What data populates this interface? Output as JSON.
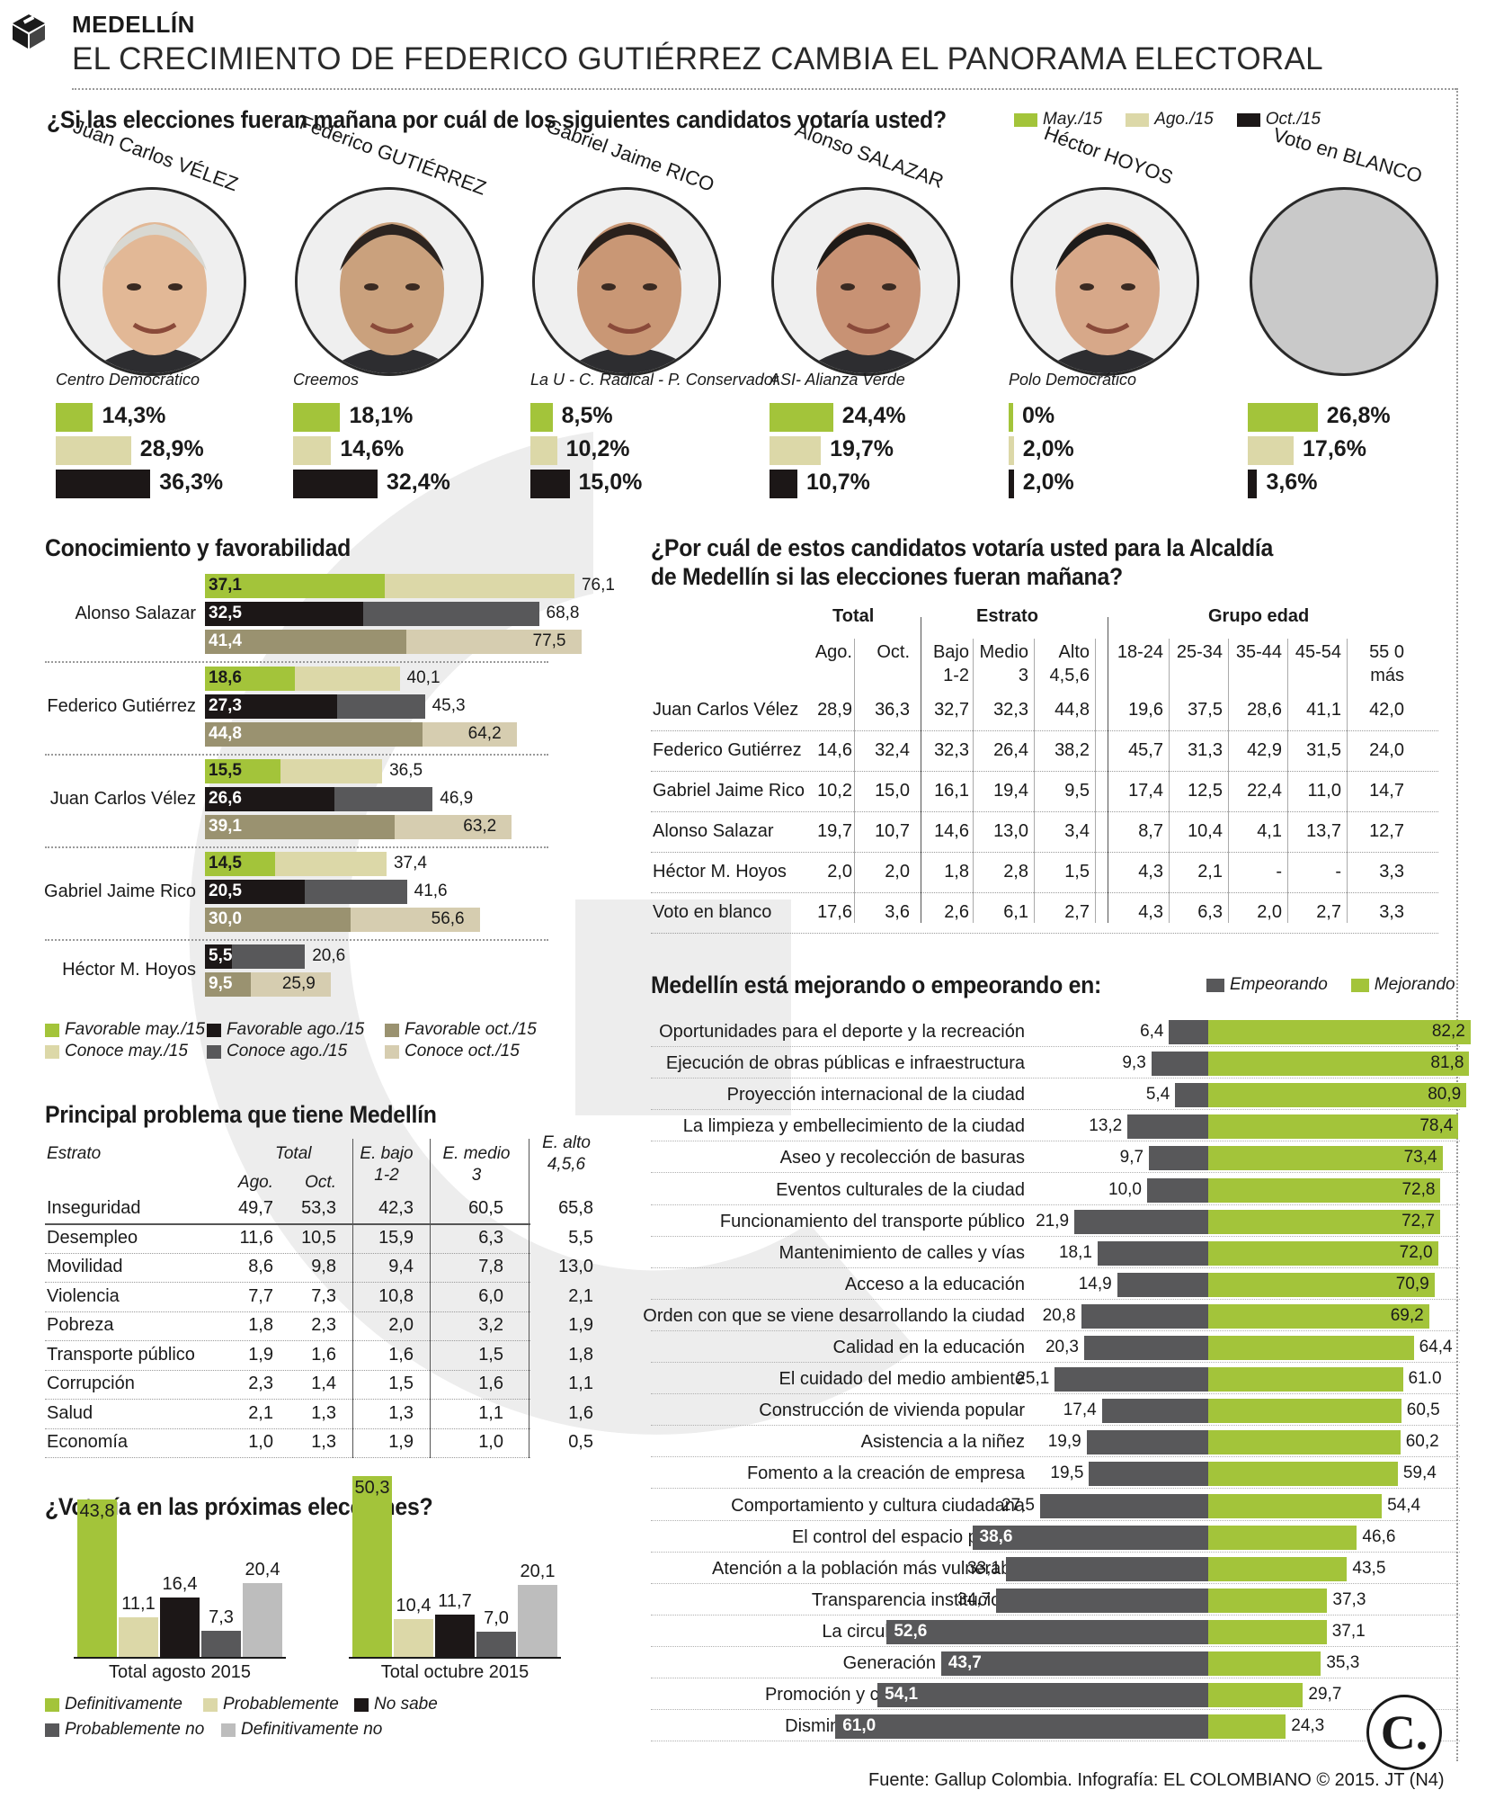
{
  "header": {
    "section": "MEDELLÍN",
    "title": "EL CRECIMIENTO DE FEDERICO GUTIÉRREZ CAMBIA EL PANORAMA ELECTORAL",
    "icon": "ballot-box-icon"
  },
  "colors": {
    "may": "#a3c43a",
    "ago": "#dcd8a8",
    "oct": "#1c1717",
    "dark_gray": "#58585a",
    "gray": "#808080",
    "olive": "#9a9270",
    "light_tan": "#d6cdb0",
    "light_gray": "#bdbdbd",
    "watermark": "#ebebeb"
  },
  "voting_intention": {
    "question": "¿Si las elecciones fueran mañana por cuál de los siguientes candidatos votaría usted?",
    "legend": [
      "May./15",
      "Ago./15",
      "Oct./15"
    ],
    "candidates": [
      {
        "first": "Juan Carlos",
        "last": "VÉLEZ",
        "party": "Centro Democrático",
        "values": [
          "14,3%",
          "28,9%",
          "36,3%"
        ]
      },
      {
        "first": "Federico",
        "last": "GUTIÉRREZ",
        "party": "Creemos",
        "values": [
          "18,1%",
          "14,6%",
          "32,4%"
        ]
      },
      {
        "first": "Gabriel Jaime",
        "last": "RICO",
        "party": "La U - C. Radical - P. Conservador",
        "values": [
          "8,5%",
          "10,2%",
          "15,0%"
        ]
      },
      {
        "first": "Alonso",
        "last": "SALAZAR",
        "party": "ASI- Alianza Verde",
        "values": [
          "24,4%",
          "19,7%",
          "10,7%"
        ]
      },
      {
        "first": "Héctor",
        "last": "HOYOS",
        "party": "Polo Democrático",
        "values": [
          "0%",
          "2,0%",
          "2,0%"
        ]
      },
      {
        "first": "Voto en",
        "last": "BLANCO",
        "party": "",
        "values": [
          "26,8%",
          "17,6%",
          "3,6%"
        ]
      }
    ]
  },
  "favorability": {
    "title": "Conocimiento y favorabilidad",
    "legend": [
      "Favorable may./15",
      "Favorable ago./15",
      "Favorable oct./15",
      "Conoce may./15",
      "Conoce ago./15",
      "Conoce oct./15"
    ],
    "rows": [
      {
        "name": "Alonso Salazar",
        "bars": [
          [
            "37,1",
            "76,1"
          ],
          [
            "32,5",
            "68,8"
          ],
          [
            "41,4",
            "77,5"
          ]
        ]
      },
      {
        "name": "Federico Gutiérrez",
        "bars": [
          [
            "18,6",
            "40,1"
          ],
          [
            "27,3",
            "45,3"
          ],
          [
            "44,8",
            "64,2"
          ]
        ]
      },
      {
        "name": "Juan Carlos Vélez",
        "bars": [
          [
            "15,5",
            "36,5"
          ],
          [
            "26,6",
            "46,9"
          ],
          [
            "39,1",
            "63,2"
          ]
        ]
      },
      {
        "name": "Gabriel Jaime Rico",
        "bars": [
          [
            "14,5",
            "37,4"
          ],
          [
            "20,5",
            "41,6"
          ],
          [
            "30,0",
            "56,6"
          ]
        ]
      },
      {
        "name": "Héctor M. Hoyos",
        "bars": [
          [
            "5,5",
            "20,6"
          ],
          [
            "9,5",
            "25,9"
          ]
        ]
      }
    ]
  },
  "mayor_table": {
    "title_line1": "¿Por cuál de estos candidatos votaría usted para la Alcaldía",
    "title_line2": "de Medellín si las elecciones fueran mañana?",
    "group_headers": [
      "Total",
      "Estrato",
      "Grupo edad"
    ],
    "col_headers": [
      [
        "Ago.",
        ""
      ],
      [
        "Oct.",
        ""
      ],
      [
        "Bajo",
        "1-2"
      ],
      [
        "Medio",
        "3"
      ],
      [
        "Alto",
        "4,5,6"
      ],
      [
        "18-24",
        ""
      ],
      [
        "25-34",
        ""
      ],
      [
        "35-44",
        ""
      ],
      [
        "45-54",
        ""
      ],
      [
        "55 0",
        "más"
      ]
    ],
    "rows": [
      {
        "name": "Juan Carlos Vélez",
        "values": [
          "28,9",
          "36,3",
          "32,7",
          "32,3",
          "44,8",
          "19,6",
          "37,5",
          "28,6",
          "41,1",
          "42,0"
        ]
      },
      {
        "name": "Federico Gutiérrez",
        "values": [
          "14,6",
          "32,4",
          "32,3",
          "26,4",
          "38,2",
          "45,7",
          "31,3",
          "42,9",
          "31,5",
          "24,0"
        ]
      },
      {
        "name": "Gabriel Jaime Rico",
        "values": [
          "10,2",
          "15,0",
          "16,1",
          "19,4",
          "9,5",
          "17,4",
          "12,5",
          "22,4",
          "11,0",
          "14,7"
        ]
      },
      {
        "name": "Alonso Salazar",
        "values": [
          "19,7",
          "10,7",
          "14,6",
          "13,0",
          "3,4",
          "8,7",
          "10,4",
          "4,1",
          "13,7",
          "12,7"
        ]
      },
      {
        "name": "Héctor M. Hoyos",
        "values": [
          "2,0",
          "2,0",
          "1,8",
          "2,8",
          "1,5",
          "4,3",
          "2,1",
          "-",
          "-",
          "3,3"
        ]
      },
      {
        "name": "Voto en blanco",
        "values": [
          "17,6",
          "3,6",
          "2,6",
          "6,1",
          "2,7",
          "4,3",
          "6,3",
          "2,0",
          "2,7",
          "3,3"
        ]
      }
    ]
  },
  "problems": {
    "title": "Principal problema que tiene Medellín",
    "headers": {
      "estrato": "Estrato",
      "total": "Total",
      "ago": "Ago.",
      "oct": "Oct.",
      "bajo": [
        "E. bajo",
        "1-2"
      ],
      "medio": [
        "E. medio",
        "3"
      ],
      "alto": [
        "E. alto",
        "4,5,6"
      ]
    },
    "rows": [
      {
        "name": "Inseguridad",
        "values": [
          "49,7",
          "53,3",
          "42,3",
          "60,5",
          "65,8"
        ]
      },
      {
        "name": "Desempleo",
        "values": [
          "11,6",
          "10,5",
          "15,9",
          "6,3",
          "5,5"
        ]
      },
      {
        "name": "Movilidad",
        "values": [
          "8,6",
          "9,8",
          "9,4",
          "7,8",
          "13,0"
        ]
      },
      {
        "name": "Violencia",
        "values": [
          "7,7",
          "7,3",
          "10,8",
          "6,0",
          "2,1"
        ]
      },
      {
        "name": "Pobreza",
        "values": [
          "1,8",
          "2,3",
          "2,0",
          "3,2",
          "1,9"
        ]
      },
      {
        "name": "Transporte público",
        "values": [
          "1,9",
          "1,6",
          "1,6",
          "1,5",
          "1,8"
        ]
      },
      {
        "name": "Corrupción",
        "values": [
          "2,3",
          "1,4",
          "1,5",
          "1,6",
          "1,1"
        ]
      },
      {
        "name": "Salud",
        "values": [
          "2,1",
          "1,3",
          "1,3",
          "1,1",
          "1,6"
        ]
      },
      {
        "name": "Economía",
        "values": [
          "1,0",
          "1,3",
          "1,9",
          "1,0",
          "0,5"
        ]
      }
    ]
  },
  "chart_data": [
    {
      "type": "bar",
      "title": "¿Votaría en las próximas elecciones?",
      "categories": [
        "Total agosto 2015",
        "Total octubre 2015"
      ],
      "series": [
        {
          "name": "Definitivamente",
          "values": [
            43.8,
            50.3
          ],
          "labels": [
            "43,8",
            "50,3"
          ]
        },
        {
          "name": "Probablemente",
          "values": [
            11.1,
            10.4
          ],
          "labels": [
            "11,1",
            "10,4"
          ]
        },
        {
          "name": "No sabe",
          "values": [
            16.4,
            11.7
          ],
          "labels": [
            "16,4",
            "11,7"
          ]
        },
        {
          "name": "Probablemente no",
          "values": [
            7.3,
            7.0
          ],
          "labels": [
            "7,3",
            "7,0"
          ]
        },
        {
          "name": "Definitivamente no",
          "values": [
            20.4,
            20.1
          ],
          "labels": [
            "20,4",
            "20,1"
          ]
        }
      ]
    },
    {
      "type": "bar",
      "title": "Medellín está mejorando o empeorando en:",
      "legend": [
        "Empeorando",
        "Mejorando"
      ],
      "categories": [
        "Oportunidades para el deporte y la recreación",
        "Ejecución de obras públicas e infraestructura",
        "Proyección internacional de la ciudad",
        "La limpieza y embellecimiento de la ciudad",
        "Aseo y recolección de basuras",
        "Eventos culturales de la ciudad",
        "Funcionamiento del transporte público",
        "Mantenimiento de calles y vías",
        "Acceso a la educación",
        "Orden con que se viene desarrollando la ciudad",
        "Calidad en la educación",
        "El cuidado del medio ambiente",
        "Construcción de vivienda popular",
        "Asistencia a la niñez",
        "Fomento a la creación de empresa",
        "Comportamiento y cultura ciudadana",
        "El control del espacio público",
        "Atención a la población más vulnerable",
        "Transparencia institucional",
        "La circulación del tránsito",
        "Generación de empleo",
        "Promoción y cuidado de la salud",
        "Disminución de la inseguridad"
      ],
      "series": [
        {
          "name": "Empeorando",
          "values": [
            6.4,
            9.3,
            5.4,
            13.2,
            9.7,
            10.0,
            21.9,
            18.1,
            14.9,
            20.8,
            20.3,
            25.1,
            17.4,
            19.9,
            19.5,
            27.5,
            38.6,
            33.1,
            34.7,
            52.6,
            43.7,
            54.1,
            61.0
          ],
          "labels": [
            "6,4",
            "9,3",
            "5,4",
            "13,2",
            "9,7",
            "10,0",
            "21,9",
            "18,1",
            "14,9",
            "20,8",
            "20,3",
            "25,1",
            "17,4",
            "19,9",
            "19,5",
            "27,5",
            "38,6",
            "33,1",
            "34,7",
            "52,6",
            "43,7",
            "54,1",
            "61,0"
          ]
        },
        {
          "name": "Mejorando",
          "values": [
            82.2,
            81.8,
            80.9,
            78.4,
            73.4,
            72.8,
            72.7,
            72.0,
            70.9,
            69.2,
            64.4,
            61.0,
            60.5,
            60.2,
            59.4,
            54.4,
            46.6,
            43.5,
            37.3,
            37.1,
            35.3,
            29.7,
            24.3
          ],
          "labels": [
            "82,2",
            "81,8",
            "80,9",
            "78,4",
            "73,4",
            "72,8",
            "72,7",
            "72,0",
            "70,9",
            "69,2",
            "64,4",
            "61.0",
            "60,5",
            "60,2",
            "59,4",
            "54,4",
            "46,6",
            "43,5",
            "37,3",
            "37,1",
            "35,3",
            "29,7",
            "24,3"
          ]
        }
      ]
    }
  ],
  "vote_legend": [
    "Definitivamente",
    "Probablemente",
    "No sabe",
    "Probablemente no",
    "Definitivamente no"
  ],
  "footer": {
    "source": "Fuente: Gallup Colombia. Infografía: EL COLOMBIANO © 2015. JT (N4)",
    "logo": "C."
  }
}
